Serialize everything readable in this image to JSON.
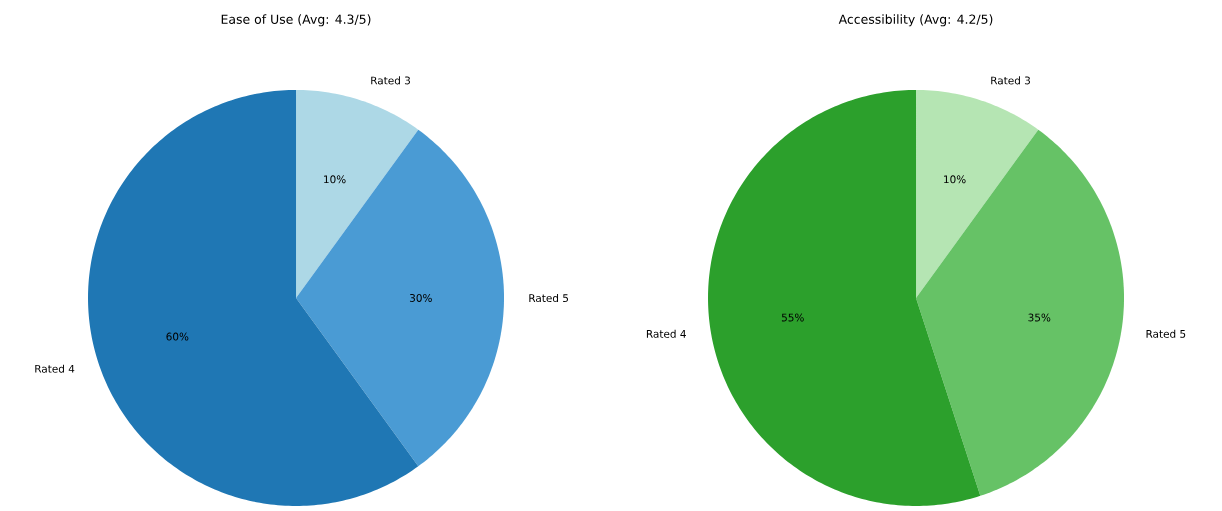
{
  "chart_data": [
    {
      "type": "pie",
      "title": "Ease of Use (Avg: 4.3/5)",
      "categories": [
        "Rated 3",
        "Rated 5",
        "Rated 4"
      ],
      "values": [
        10,
        30,
        60
      ],
      "colors": [
        "#add8e6",
        "#4a9bd4",
        "#1f77b4"
      ],
      "value_labels": [
        "10%",
        "30%",
        "60%"
      ]
    },
    {
      "type": "pie",
      "title": "Accessibility (Avg: 4.2/5)",
      "categories": [
        "Rated 3",
        "Rated 5",
        "Rated 4"
      ],
      "values": [
        10,
        35,
        55
      ],
      "colors": [
        "#b5e5b3",
        "#66c266",
        "#2ca02c"
      ],
      "value_labels": [
        "10%",
        "35%",
        "55%"
      ]
    }
  ]
}
